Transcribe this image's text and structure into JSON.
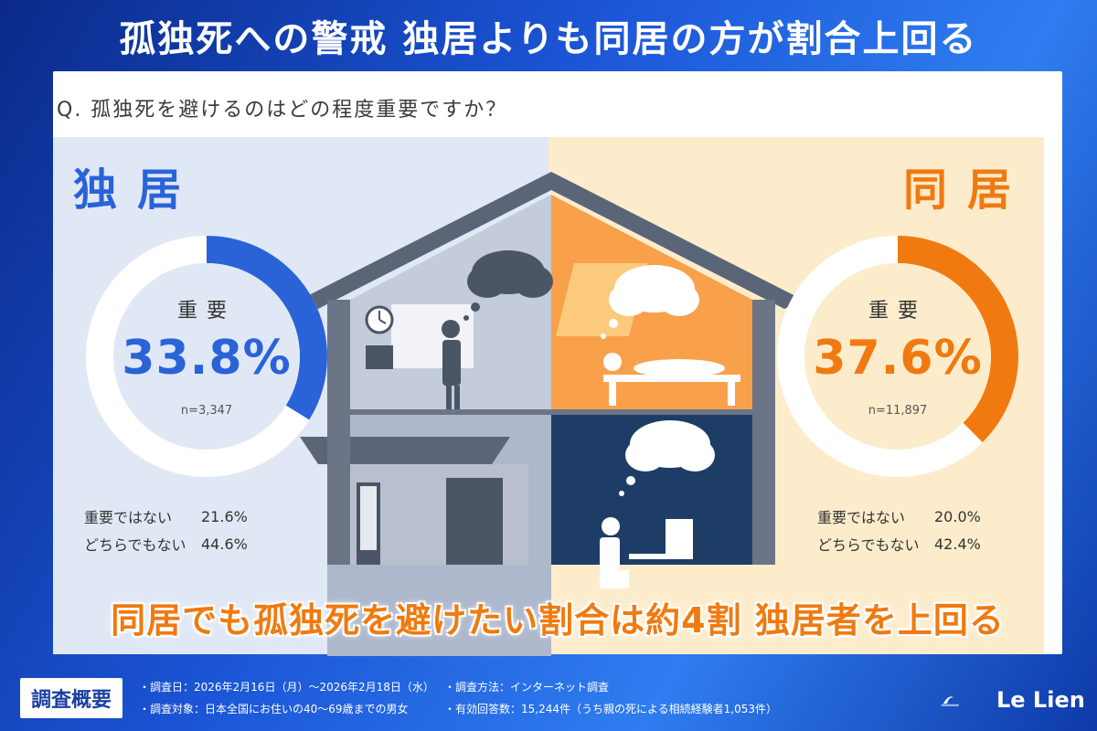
{
  "header": {
    "title": "孤独死への警戒 独居よりも同居の方が割合上回る"
  },
  "question": "Q. 孤独死を避けるのはどの程度重要ですか？",
  "colors": {
    "alone": "#2a63d8",
    "together": "#f07a10",
    "alone_bg": "#e1e8f5",
    "together_bg": "#fdeccc"
  },
  "alone": {
    "label": "独居",
    "donut_label": "重要",
    "important_text": "33.8%",
    "n_text": "n=3,347",
    "stats": [
      {
        "label": "重要ではない",
        "value": "21.6%"
      },
      {
        "label": "どちらでもない",
        "value": "44.6%"
      }
    ]
  },
  "together": {
    "label": "同居",
    "donut_label": "重要",
    "important_text": "37.6%",
    "n_text": "n=11,897",
    "stats": [
      {
        "label": "重要ではない",
        "value": "20.0%"
      },
      {
        "label": "どちらでもない",
        "value": "42.4%"
      }
    ]
  },
  "banner": "同居でも孤独死を避けたい割合は約4割 独居者を上回る",
  "footer": {
    "tag": "調査概要",
    "date": "・調査日：2026年2月16日（月）～2026年2月18日（水）",
    "target": "・調査対象：日本全国にお住いの40～69歳までの男女",
    "method": "・調査方法：インターネット調査",
    "responses": "・有効回答数：15,244件（うち親の死による相続経験者1,053件）",
    "logo": "Le Lien"
  },
  "chart_data": [
    {
      "type": "pie",
      "name": "独居",
      "categories": [
        "重要",
        "重要ではない",
        "どちらでもない"
      ],
      "values": [
        33.8,
        21.6,
        44.6
      ],
      "highlight": "重要",
      "n": 3347
    },
    {
      "type": "pie",
      "name": "同居",
      "categories": [
        "重要",
        "重要ではない",
        "どちらでもない"
      ],
      "values": [
        37.6,
        20.0,
        42.4
      ],
      "highlight": "重要",
      "n": 11897
    }
  ]
}
